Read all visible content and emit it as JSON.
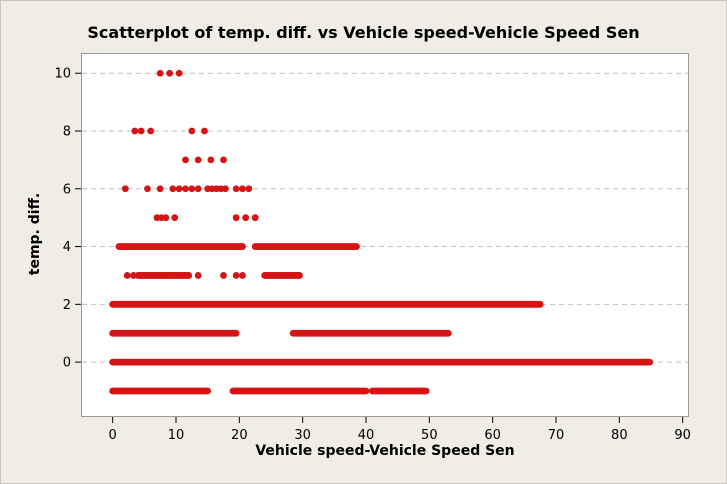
{
  "chart_data": {
    "type": "scatter",
    "title": "Scatterplot of temp. diff. vs Vehicle speed-Vehicle Speed Sen",
    "xlabel": "Vehicle speed-Vehicle Speed Sen",
    "ylabel": "temp. diff.",
    "xlim": [
      -5,
      91
    ],
    "ylim": [
      -1.9,
      10.7
    ],
    "xticks": [
      0,
      10,
      20,
      30,
      40,
      50,
      60,
      70,
      80,
      90
    ],
    "yticks": [
      0,
      2,
      4,
      6,
      8,
      10
    ],
    "grid": "horizontal-dashed",
    "marker_color": "#d51515",
    "series": [
      {
        "points": [
          {
            "x": 7.5,
            "y": 10
          },
          {
            "x": 9.0,
            "y": 10
          },
          {
            "x": 10.5,
            "y": 10
          },
          {
            "x": 3.5,
            "y": 8
          },
          {
            "x": 4.5,
            "y": 8
          },
          {
            "x": 6.0,
            "y": 8
          },
          {
            "x": 12.5,
            "y": 8
          },
          {
            "x": 14.5,
            "y": 8
          },
          {
            "x": 11.5,
            "y": 7
          },
          {
            "x": 13.5,
            "y": 7
          },
          {
            "x": 15.5,
            "y": 7
          },
          {
            "x": 17.5,
            "y": 7
          },
          {
            "x": 2.0,
            "y": 6
          },
          {
            "x": 5.5,
            "y": 6
          },
          {
            "x": 7.5,
            "y": 6
          },
          {
            "x": 9.5,
            "y": 6
          },
          {
            "x": 10.5,
            "y": 6
          },
          {
            "x": 11.5,
            "y": 6
          },
          {
            "x": 12.5,
            "y": 6
          },
          {
            "x": 13.5,
            "y": 6
          },
          {
            "x": 15.0,
            "y": 6
          },
          {
            "x": 15.7,
            "y": 6
          },
          {
            "x": 16.4,
            "y": 6
          },
          {
            "x": 17.1,
            "y": 6
          },
          {
            "x": 17.8,
            "y": 6
          },
          {
            "x": 19.5,
            "y": 6
          },
          {
            "x": 20.5,
            "y": 6
          },
          {
            "x": 21.5,
            "y": 6
          },
          {
            "x": 7.0,
            "y": 5
          },
          {
            "x": 7.7,
            "y": 5
          },
          {
            "x": 8.4,
            "y": 5
          },
          {
            "x": 9.8,
            "y": 5
          },
          {
            "x": 19.5,
            "y": 5
          },
          {
            "x": 21.0,
            "y": 5
          },
          {
            "x": 22.5,
            "y": 5
          },
          {
            "x": 2.3,
            "y": 3
          },
          {
            "x": 3.3,
            "y": 3
          },
          {
            "x": 9.5,
            "y": 3
          },
          {
            "x": 13.5,
            "y": 3
          },
          {
            "x": 17.5,
            "y": 3
          },
          {
            "x": 19.5,
            "y": 3
          },
          {
            "x": 20.5,
            "y": 3
          }
        ],
        "segments": [
          {
            "y": -1,
            "from": 0,
            "to": 15
          },
          {
            "y": -1,
            "from": 19,
            "to": 20
          },
          {
            "y": -1,
            "from": 20,
            "to": 40
          },
          {
            "y": -1,
            "from": 41,
            "to": 49.5
          },
          {
            "y": 0,
            "from": 0,
            "to": 84.8
          },
          {
            "y": 1,
            "from": 0,
            "to": 19.5
          },
          {
            "y": 1,
            "from": 28.5,
            "to": 53
          },
          {
            "y": 2,
            "from": 0,
            "to": 67.5
          },
          {
            "y": 3,
            "from": 4,
            "to": 12
          },
          {
            "y": 3,
            "from": 24,
            "to": 29.5
          },
          {
            "y": 4,
            "from": 1,
            "to": 20.5
          },
          {
            "y": 4,
            "from": 22.5,
            "to": 38.5
          }
        ]
      }
    ]
  }
}
